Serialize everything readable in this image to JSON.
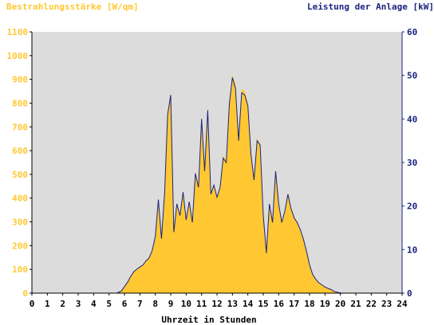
{
  "chart_data": {
    "type": "area",
    "title_left": "Bestrahlungsstärke [W/qm]",
    "title_right": "Leistung der Anlage [kW]",
    "xlabel": "Uhrzeit in Stunden",
    "xlim": [
      0,
      24
    ],
    "x_ticks": [
      0,
      1,
      2,
      3,
      4,
      5,
      6,
      7,
      8,
      9,
      10,
      11,
      12,
      13,
      14,
      15,
      16,
      17,
      18,
      19,
      20,
      21,
      22,
      23,
      24
    ],
    "y_left": {
      "lim": [
        0,
        1100
      ],
      "ticks": [
        0,
        100,
        200,
        300,
        400,
        500,
        600,
        700,
        800,
        900,
        1000,
        1100
      ]
    },
    "y_right": {
      "lim": [
        0,
        60
      ],
      "ticks": [
        0,
        10,
        20,
        30,
        40,
        50,
        60
      ]
    },
    "grid": false,
    "colors": {
      "plot_bg": "#DCDCDC",
      "irradiance": "#FFC832",
      "power": "#1A237E",
      "axis": "#000000"
    },
    "series": [
      {
        "name": "Bestrahlungsstärke [W/qm]",
        "axis": "left",
        "x": [
          5.5,
          5.8,
          6.0,
          6.2,
          6.4,
          6.6,
          6.8,
          7.0,
          7.2,
          7.4,
          7.6,
          7.8,
          8.0,
          8.2,
          8.4,
          8.6,
          8.8,
          9.0,
          9.2,
          9.4,
          9.6,
          9.8,
          10.0,
          10.2,
          10.4,
          10.6,
          10.8,
          11.0,
          11.2,
          11.4,
          11.6,
          11.8,
          12.0,
          12.2,
          12.4,
          12.6,
          12.8,
          13.0,
          13.2,
          13.4,
          13.6,
          13.8,
          14.0,
          14.2,
          14.4,
          14.6,
          14.8,
          15.0,
          15.2,
          15.4,
          15.6,
          15.8,
          16.0,
          16.2,
          16.4,
          16.6,
          16.8,
          17.0,
          17.2,
          17.4,
          17.6,
          17.8,
          18.0,
          18.2,
          18.4,
          18.6,
          18.8,
          19.0,
          19.2,
          19.4,
          19.6,
          19.8,
          20.0,
          20.1
        ],
        "values": [
          0,
          10,
          25,
          50,
          70,
          90,
          100,
          110,
          120,
          135,
          150,
          180,
          240,
          400,
          230,
          420,
          760,
          850,
          260,
          380,
          330,
          430,
          310,
          390,
          300,
          510,
          450,
          740,
          520,
          790,
          420,
          460,
          410,
          450,
          580,
          560,
          800,
          920,
          880,
          650,
          860,
          850,
          800,
          600,
          490,
          650,
          630,
          330,
          170,
          380,
          300,
          520,
          380,
          300,
          350,
          420,
          360,
          320,
          300,
          270,
          230,
          180,
          120,
          80,
          60,
          45,
          35,
          25,
          20,
          15,
          8,
          4,
          1,
          0
        ]
      },
      {
        "name": "Leistung der Anlage [kW]",
        "axis": "right",
        "x": [
          5.5,
          5.8,
          6.0,
          6.2,
          6.4,
          6.6,
          6.8,
          7.0,
          7.2,
          7.4,
          7.6,
          7.8,
          8.0,
          8.2,
          8.4,
          8.6,
          8.8,
          9.0,
          9.2,
          9.4,
          9.6,
          9.8,
          10.0,
          10.2,
          10.4,
          10.6,
          10.8,
          11.0,
          11.2,
          11.4,
          11.6,
          11.8,
          12.0,
          12.2,
          12.4,
          12.6,
          12.8,
          13.0,
          13.2,
          13.4,
          13.6,
          13.8,
          14.0,
          14.2,
          14.4,
          14.6,
          14.8,
          15.0,
          15.2,
          15.4,
          15.6,
          15.8,
          16.0,
          16.2,
          16.4,
          16.6,
          16.8,
          17.0,
          17.2,
          17.4,
          17.6,
          17.8,
          18.0,
          18.2,
          18.4,
          18.6,
          18.8,
          19.0,
          19.2,
          19.4,
          19.6,
          19.8,
          20.0,
          20.1
        ],
        "values": [
          0,
          0.5,
          1.5,
          2.5,
          3.8,
          4.9,
          5.5,
          6.0,
          6.5,
          7.4,
          8.1,
          9.8,
          13.0,
          21.5,
          12.5,
          22.8,
          41.0,
          45.5,
          14.0,
          20.5,
          17.8,
          23.2,
          16.8,
          21.0,
          16.2,
          27.5,
          24.3,
          40.0,
          28.0,
          42.0,
          22.7,
          24.8,
          22.0,
          24.3,
          31.0,
          30.0,
          43.5,
          49.5,
          47.0,
          35.0,
          46.0,
          45.5,
          43.0,
          32.0,
          26.0,
          35.0,
          34.0,
          17.8,
          9.2,
          20.5,
          16.2,
          28.0,
          20.5,
          16.2,
          18.9,
          22.7,
          19.4,
          17.3,
          16.2,
          14.6,
          12.4,
          9.7,
          6.5,
          4.3,
          3.2,
          2.4,
          1.9,
          1.4,
          1.1,
          0.8,
          0.4,
          0.2,
          0.05,
          0
        ]
      }
    ]
  }
}
